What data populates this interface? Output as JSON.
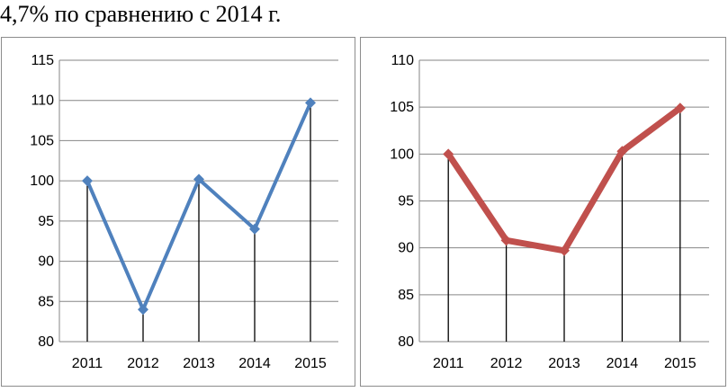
{
  "header": {
    "text": "4,7% по сравнению с 2014 г."
  },
  "chart_data": [
    {
      "type": "line",
      "categories": [
        "2011",
        "2012",
        "2013",
        "2014",
        "2015"
      ],
      "series": [
        {
          "values": [
            100,
            84,
            100.2,
            94,
            109.7
          ]
        }
      ],
      "ylim": [
        80,
        115
      ],
      "yticks": [
        80,
        85,
        90,
        95,
        100,
        105,
        110,
        115
      ],
      "grid": true,
      "color": "#4f81bd"
    },
    {
      "type": "line",
      "categories": [
        "2011",
        "2012",
        "2013",
        "2014",
        "2015"
      ],
      "series": [
        {
          "values": [
            100,
            90.8,
            89.7,
            100.3,
            104.9
          ]
        }
      ],
      "ylim": [
        80,
        110
      ],
      "yticks": [
        80,
        85,
        90,
        95,
        100,
        105,
        110
      ],
      "grid": true,
      "color": "#c0504d"
    }
  ]
}
